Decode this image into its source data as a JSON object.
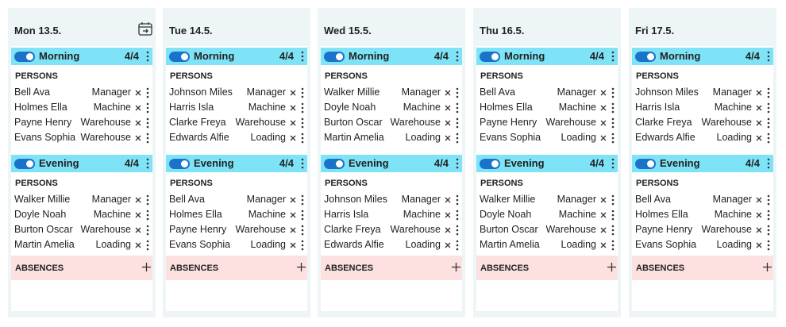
{
  "persons_label": "PERSONS",
  "absences_label": "ABSENCES",
  "days": [
    {
      "title": "Mon 13.5.",
      "shifts": [
        {
          "name": "Morning",
          "count": "4/4",
          "persons": [
            [
              "Bell Ava",
              "Manager"
            ],
            [
              "Holmes Ella",
              "Machine"
            ],
            [
              "Payne Henry",
              "Warehouse"
            ],
            [
              "Evans Sophia",
              "Warehouse"
            ]
          ]
        },
        {
          "name": "Evening",
          "count": "4/4",
          "persons": [
            [
              "Walker Millie",
              "Manager"
            ],
            [
              "Doyle Noah",
              "Machine"
            ],
            [
              "Burton Oscar",
              "Warehouse"
            ],
            [
              "Martin Amelia",
              "Loading"
            ]
          ]
        }
      ]
    },
    {
      "title": "Tue 14.5.",
      "shifts": [
        {
          "name": "Morning",
          "count": "4/4",
          "persons": [
            [
              "Johnson Miles",
              "Manager"
            ],
            [
              "Harris Isla",
              "Machine"
            ],
            [
              "Clarke Freya",
              "Warehouse"
            ],
            [
              "Edwards Alfie",
              "Loading"
            ]
          ]
        },
        {
          "name": "Evening",
          "count": "4/4",
          "persons": [
            [
              "Bell Ava",
              "Manager"
            ],
            [
              "Holmes Ella",
              "Machine"
            ],
            [
              "Payne Henry",
              "Warehouse"
            ],
            [
              "Evans Sophia",
              "Loading"
            ]
          ]
        }
      ]
    },
    {
      "title": "Wed 15.5.",
      "shifts": [
        {
          "name": "Morning",
          "count": "4/4",
          "persons": [
            [
              "Walker Millie",
              "Manager"
            ],
            [
              "Doyle Noah",
              "Machine"
            ],
            [
              "Burton Oscar",
              "Warehouse"
            ],
            [
              "Martin Amelia",
              "Loading"
            ]
          ]
        },
        {
          "name": "Evening",
          "count": "4/4",
          "persons": [
            [
              "Johnson Miles",
              "Manager"
            ],
            [
              "Harris Isla",
              "Machine"
            ],
            [
              "Clarke Freya",
              "Warehouse"
            ],
            [
              "Edwards Alfie",
              "Loading"
            ]
          ]
        }
      ]
    },
    {
      "title": "Thu 16.5.",
      "shifts": [
        {
          "name": "Morning",
          "count": "4/4",
          "persons": [
            [
              "Bell Ava",
              "Manager"
            ],
            [
              "Holmes Ella",
              "Machine"
            ],
            [
              "Payne Henry",
              "Warehouse"
            ],
            [
              "Evans Sophia",
              "Loading"
            ]
          ]
        },
        {
          "name": "Evening",
          "count": "4/4",
          "persons": [
            [
              "Walker Millie",
              "Manager"
            ],
            [
              "Doyle Noah",
              "Machine"
            ],
            [
              "Burton Oscar",
              "Warehouse"
            ],
            [
              "Martin Amelia",
              "Loading"
            ]
          ]
        }
      ]
    },
    {
      "title": "Fri 17.5.",
      "shifts": [
        {
          "name": "Morning",
          "count": "4/4",
          "persons": [
            [
              "Johnson Miles",
              "Manager"
            ],
            [
              "Harris Isla",
              "Machine"
            ],
            [
              "Clarke Freya",
              "Warehouse"
            ],
            [
              "Edwards Alfie",
              "Loading"
            ]
          ]
        },
        {
          "name": "Evening",
          "count": "4/4",
          "persons": [
            [
              "Bell Ava",
              "Manager"
            ],
            [
              "Holmes Ella",
              "Machine"
            ],
            [
              "Payne Henry",
              "Warehouse"
            ],
            [
              "Evans Sophia",
              "Loading"
            ]
          ]
        }
      ]
    }
  ]
}
